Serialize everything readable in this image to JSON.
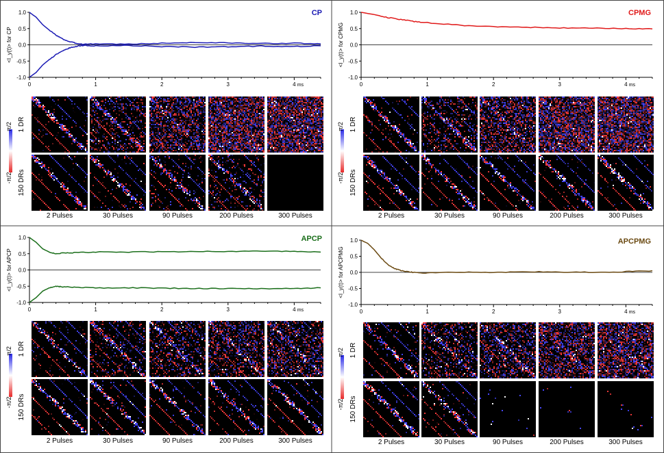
{
  "colors": {
    "CP": "#1a1ab4",
    "CPMG": "#e01818",
    "APCP": "#1a6e1a",
    "APCPMG": "#6b4a12",
    "heat_pos": "#2a2ae8",
    "heat_neg": "#e82a2a"
  },
  "colorbar": {
    "top_label": "π/2",
    "bottom_label": "-π/2"
  },
  "row_labels": [
    "1 DR",
    "150 DRs"
  ],
  "column_labels": [
    "2 Pulses",
    "30 Pulses",
    "90 Pulses",
    "200 Pulses",
    "300 Pulses"
  ],
  "chart_data": [
    {
      "type": "line",
      "title": "CP",
      "ylabel": "<I_y(t)> for CP",
      "xunit": "ms",
      "xlim": [
        0,
        4.4
      ],
      "ylim": [
        -1.0,
        1.0
      ],
      "xticks": [
        0,
        1,
        2,
        3,
        4
      ],
      "yticks": [
        -1.0,
        -0.5,
        0.0,
        0.5,
        1.0
      ],
      "series": [
        {
          "x": [
            0,
            0.1,
            0.2,
            0.3,
            0.4,
            0.5,
            0.6,
            0.7,
            0.8,
            1.0,
            1.5,
            2.0,
            2.5,
            3.0,
            3.5,
            4.0,
            4.4
          ],
          "values": [
            1.0,
            0.85,
            0.62,
            0.45,
            0.3,
            0.18,
            0.1,
            0.05,
            0.02,
            0.03,
            0.02,
            0.05,
            0.07,
            0.06,
            0.04,
            0.05,
            0.03
          ]
        },
        {
          "x": [
            0,
            0.1,
            0.2,
            0.3,
            0.4,
            0.5,
            0.6,
            0.7,
            0.8,
            1.0,
            1.5,
            2.0,
            2.5,
            3.0,
            3.5,
            4.0,
            4.4
          ],
          "values": [
            -1.0,
            -0.85,
            -0.62,
            -0.45,
            -0.3,
            -0.18,
            -0.1,
            -0.05,
            -0.02,
            -0.03,
            -0.02,
            -0.05,
            -0.07,
            -0.06,
            -0.04,
            -0.05,
            -0.03
          ]
        }
      ],
      "heatmaps": [
        {
          "row": "1 DR",
          "noise": [
            0.05,
            0.25,
            0.55,
            0.8,
            0.85
          ]
        },
        {
          "row": "150 DRs",
          "noise": [
            0.02,
            0.04,
            0.08,
            0.15,
            0.0
          ],
          "blank_last": true
        }
      ]
    },
    {
      "type": "line",
      "title": "CPMG",
      "ylabel": "<I_y(t)> for CPMG",
      "xunit": "ms",
      "xlim": [
        0,
        4.4
      ],
      "ylim": [
        -1.0,
        1.0
      ],
      "xticks": [
        0,
        1,
        2,
        3,
        4
      ],
      "yticks": [
        -1.0,
        -0.5,
        0.0,
        0.5,
        1.0
      ],
      "series": [
        {
          "x": [
            0,
            0.2,
            0.4,
            0.6,
            0.8,
            1.0,
            1.5,
            2.0,
            2.5,
            3.0,
            3.5,
            4.0,
            4.4
          ],
          "values": [
            1.0,
            0.93,
            0.84,
            0.78,
            0.72,
            0.68,
            0.6,
            0.56,
            0.54,
            0.52,
            0.51,
            0.5,
            0.49
          ]
        }
      ],
      "heatmaps": [
        {
          "row": "1 DR",
          "noise": [
            0.05,
            0.25,
            0.55,
            0.8,
            0.85
          ]
        },
        {
          "row": "150 DRs",
          "noise": [
            0.02,
            0.03,
            0.03,
            0.03,
            0.03
          ]
        }
      ]
    },
    {
      "type": "line",
      "title": "APCP",
      "ylabel": "<I_y(t)> for APCP",
      "xunit": "ms",
      "xlim": [
        0,
        4.4
      ],
      "ylim": [
        -1.0,
        1.0
      ],
      "xticks": [
        0,
        1,
        2,
        3,
        4
      ],
      "yticks": [
        -1.0,
        -0.5,
        0.0,
        0.5,
        1.0
      ],
      "series": [
        {
          "x": [
            0,
            0.1,
            0.2,
            0.3,
            0.4,
            0.5,
            0.7,
            1.0,
            1.5,
            2.0,
            2.5,
            3.0,
            3.5,
            4.0,
            4.4
          ],
          "values": [
            1.0,
            0.85,
            0.65,
            0.55,
            0.5,
            0.52,
            0.53,
            0.55,
            0.55,
            0.56,
            0.57,
            0.57,
            0.58,
            0.57,
            0.55
          ]
        },
        {
          "x": [
            0,
            0.1,
            0.2,
            0.3,
            0.4,
            0.5,
            0.7,
            1.0,
            1.5,
            2.0,
            2.5,
            3.0,
            3.5,
            4.0,
            4.4
          ],
          "values": [
            -1.0,
            -0.85,
            -0.65,
            -0.55,
            -0.5,
            -0.52,
            -0.53,
            -0.55,
            -0.55,
            -0.56,
            -0.57,
            -0.57,
            -0.58,
            -0.57,
            -0.55
          ]
        }
      ],
      "heatmaps": [
        {
          "row": "1 DR",
          "noise": [
            0.05,
            0.2,
            0.3,
            0.4,
            0.45
          ]
        },
        {
          "row": "150 DRs",
          "noise": [
            0.02,
            0.03,
            0.03,
            0.03,
            0.03
          ]
        }
      ]
    },
    {
      "type": "line",
      "title": "APCPMG",
      "ylabel": "<I_y(t)> for APCPMG",
      "xunit": "ms",
      "xlim": [
        0,
        4.4
      ],
      "ylim": [
        -1.0,
        1.0
      ],
      "xticks": [
        0,
        1,
        2,
        3,
        4
      ],
      "yticks": [
        -1.0,
        -0.5,
        0.0,
        0.5,
        1.0
      ],
      "series": [
        {
          "x": [
            0,
            0.1,
            0.2,
            0.3,
            0.4,
            0.5,
            0.6,
            0.7,
            0.8,
            1.0,
            1.5,
            2.0,
            2.5,
            3.0,
            3.5,
            4.0,
            4.4
          ],
          "values": [
            1.0,
            0.9,
            0.7,
            0.45,
            0.25,
            0.12,
            0.06,
            0.02,
            0.0,
            -0.02,
            0.01,
            0.0,
            0.02,
            0.01,
            0.0,
            0.02,
            0.05
          ]
        }
      ],
      "heatmaps": [
        {
          "row": "1 DR",
          "noise": [
            0.05,
            0.3,
            0.45,
            0.6,
            0.7
          ]
        },
        {
          "row": "150 DRs",
          "noise": [
            0.02,
            0.03,
            0.0,
            0.0,
            0.0
          ],
          "sparse_last3": true
        }
      ]
    }
  ]
}
